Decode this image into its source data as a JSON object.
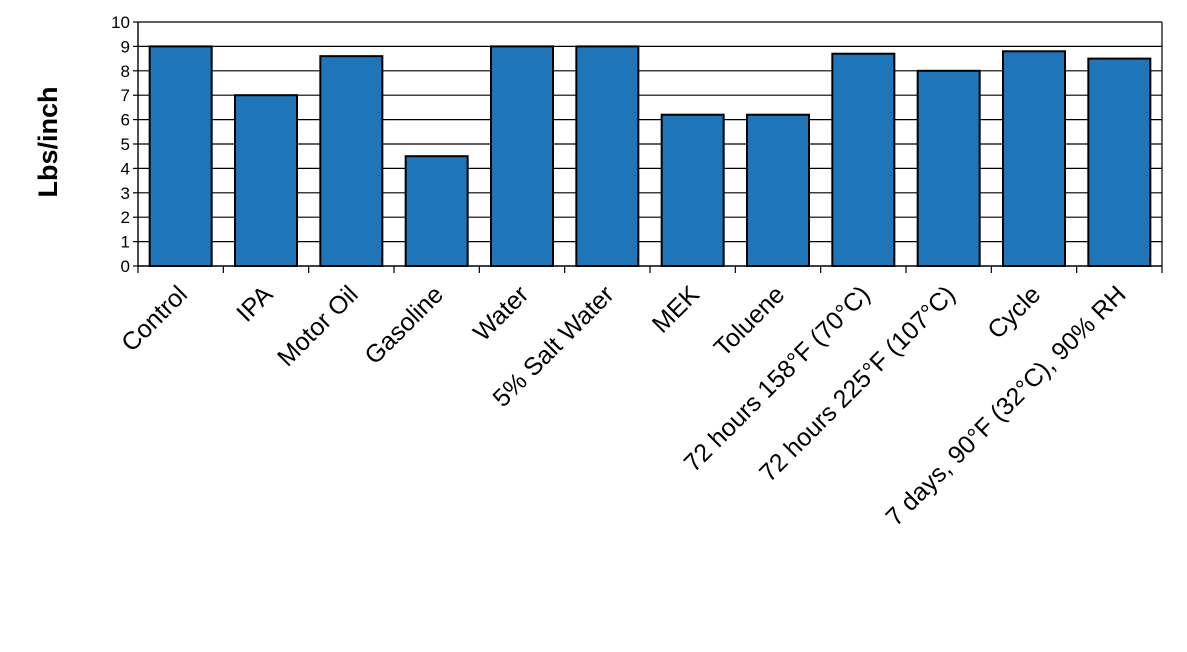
{
  "chart_data": {
    "type": "bar",
    "title": "",
    "xlabel": "",
    "ylabel": "Lbs/inch",
    "ylim": [
      0,
      10
    ],
    "yticks": [
      0,
      1,
      2,
      3,
      4,
      5,
      6,
      7,
      8,
      9,
      10
    ],
    "grid": "horizontal",
    "bar_color": "#1f75b8",
    "bar_edge_color": "#000000",
    "categories": [
      "Control",
      "IPA",
      "Motor Oil",
      "Gasoline",
      "Water",
      "5% Salt Water",
      "MEK",
      "Toluene",
      "72 hours 158°F (70°C)",
      "72 hours 225°F (107°C)",
      "Cycle",
      "7 days, 90°F (32°C), 90% RH"
    ],
    "values": [
      9.0,
      7.0,
      8.6,
      4.5,
      9.0,
      9.0,
      6.2,
      6.2,
      8.7,
      8.0,
      8.8,
      8.5
    ]
  }
}
